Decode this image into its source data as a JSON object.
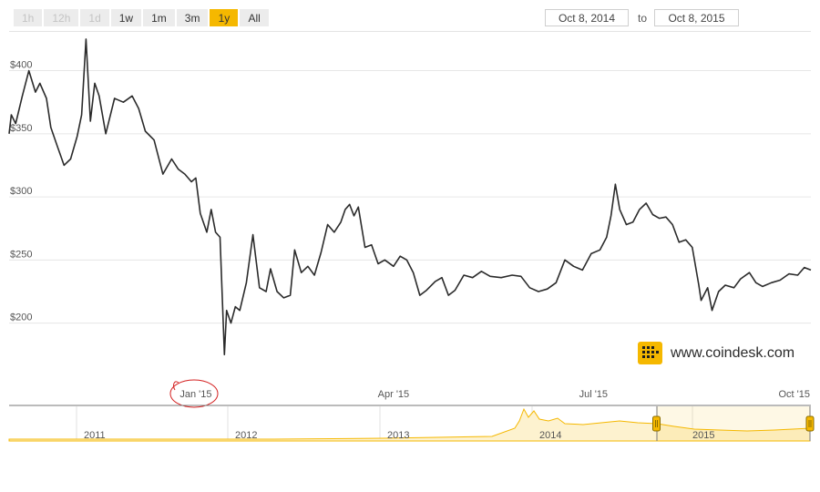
{
  "range_buttons": [
    {
      "label": "1h",
      "state": "disabled"
    },
    {
      "label": "12h",
      "state": "disabled"
    },
    {
      "label": "1d",
      "state": "disabled"
    },
    {
      "label": "1w",
      "state": "normal"
    },
    {
      "label": "1m",
      "state": "normal"
    },
    {
      "label": "3m",
      "state": "normal"
    },
    {
      "label": "1y",
      "state": "active"
    },
    {
      "label": "All",
      "state": "normal"
    }
  ],
  "date_range": {
    "from": "Oct 8, 2014",
    "to_label": "to",
    "to": "Oct 8, 2015"
  },
  "watermark": "www.coindesk.com",
  "colors": {
    "line": "#2b2b2b",
    "accent": "#f5b800",
    "grid": "#e6e6e6",
    "annotation": "#d42020"
  },
  "chart_data": {
    "type": "line",
    "ylim": [
      160,
      430
    ],
    "y_ticks": [
      {
        "value": 400,
        "label": "$400"
      },
      {
        "value": 350,
        "label": "$350"
      },
      {
        "value": 300,
        "label": "$300"
      },
      {
        "value": 250,
        "label": "$250"
      },
      {
        "value": 200,
        "label": "$200"
      }
    ],
    "x_ticks": [
      {
        "date": "2015-01-01",
        "label": "Jan '15"
      },
      {
        "date": "2015-04-01",
        "label": "Apr '15"
      },
      {
        "date": "2015-07-01",
        "label": "Jul '15"
      },
      {
        "date": "2015-10-01",
        "label": "Oct '15"
      }
    ],
    "annotation": {
      "label": "Jan '15",
      "shape": "hand-drawn red circle"
    },
    "series": [
      {
        "points": [
          [
            "2014-10-08",
            350
          ],
          [
            "2014-10-09",
            365
          ],
          [
            "2014-10-11",
            358
          ],
          [
            "2014-10-14",
            380
          ],
          [
            "2014-10-17",
            400
          ],
          [
            "2014-10-20",
            383
          ],
          [
            "2014-10-22",
            390
          ],
          [
            "2014-10-25",
            378
          ],
          [
            "2014-10-27",
            355
          ],
          [
            "2014-10-30",
            340
          ],
          [
            "2014-11-02",
            325
          ],
          [
            "2014-11-05",
            330
          ],
          [
            "2014-11-08",
            348
          ],
          [
            "2014-11-10",
            365
          ],
          [
            "2014-11-12",
            425
          ],
          [
            "2014-11-14",
            360
          ],
          [
            "2014-11-16",
            390
          ],
          [
            "2014-11-18",
            380
          ],
          [
            "2014-11-21",
            350
          ],
          [
            "2014-11-25",
            378
          ],
          [
            "2014-11-29",
            375
          ],
          [
            "2014-12-03",
            380
          ],
          [
            "2014-12-06",
            370
          ],
          [
            "2014-12-09",
            352
          ],
          [
            "2014-12-13",
            345
          ],
          [
            "2014-12-17",
            318
          ],
          [
            "2014-12-21",
            330
          ],
          [
            "2014-12-24",
            322
          ],
          [
            "2014-12-27",
            318
          ],
          [
            "2014-12-30",
            312
          ],
          [
            "2015-01-01",
            315
          ],
          [
            "2015-01-03",
            287
          ],
          [
            "2015-01-06",
            272
          ],
          [
            "2015-01-08",
            290
          ],
          [
            "2015-01-10",
            272
          ],
          [
            "2015-01-12",
            268
          ],
          [
            "2015-01-14",
            175
          ],
          [
            "2015-01-15",
            210
          ],
          [
            "2015-01-17",
            200
          ],
          [
            "2015-01-19",
            213
          ],
          [
            "2015-01-21",
            210
          ],
          [
            "2015-01-24",
            232
          ],
          [
            "2015-01-27",
            270
          ],
          [
            "2015-01-30",
            228
          ],
          [
            "2015-02-02",
            225
          ],
          [
            "2015-02-04",
            243
          ],
          [
            "2015-02-07",
            225
          ],
          [
            "2015-02-10",
            220
          ],
          [
            "2015-02-13",
            222
          ],
          [
            "2015-02-15",
            258
          ],
          [
            "2015-02-18",
            240
          ],
          [
            "2015-02-21",
            245
          ],
          [
            "2015-02-24",
            238
          ],
          [
            "2015-02-27",
            256
          ],
          [
            "2015-03-02",
            278
          ],
          [
            "2015-03-05",
            272
          ],
          [
            "2015-03-08",
            280
          ],
          [
            "2015-03-10",
            290
          ],
          [
            "2015-03-12",
            294
          ],
          [
            "2015-03-14",
            285
          ],
          [
            "2015-03-16",
            292
          ],
          [
            "2015-03-19",
            260
          ],
          [
            "2015-03-22",
            262
          ],
          [
            "2015-03-25",
            247
          ],
          [
            "2015-03-28",
            250
          ],
          [
            "2015-04-01",
            245
          ],
          [
            "2015-04-04",
            253
          ],
          [
            "2015-04-07",
            250
          ],
          [
            "2015-04-10",
            240
          ],
          [
            "2015-04-13",
            222
          ],
          [
            "2015-04-16",
            226
          ],
          [
            "2015-04-20",
            233
          ],
          [
            "2015-04-23",
            236
          ],
          [
            "2015-04-26",
            222
          ],
          [
            "2015-04-29",
            226
          ],
          [
            "2015-05-03",
            238
          ],
          [
            "2015-05-07",
            236
          ],
          [
            "2015-05-11",
            241
          ],
          [
            "2015-05-15",
            237
          ],
          [
            "2015-05-20",
            236
          ],
          [
            "2015-05-25",
            238
          ],
          [
            "2015-05-29",
            237
          ],
          [
            "2015-06-02",
            228
          ],
          [
            "2015-06-06",
            225
          ],
          [
            "2015-06-10",
            227
          ],
          [
            "2015-06-14",
            232
          ],
          [
            "2015-06-18",
            250
          ],
          [
            "2015-06-22",
            245
          ],
          [
            "2015-06-26",
            242
          ],
          [
            "2015-06-30",
            255
          ],
          [
            "2015-07-04",
            258
          ],
          [
            "2015-07-07",
            268
          ],
          [
            "2015-07-09",
            285
          ],
          [
            "2015-07-11",
            310
          ],
          [
            "2015-07-13",
            290
          ],
          [
            "2015-07-16",
            278
          ],
          [
            "2015-07-19",
            280
          ],
          [
            "2015-07-22",
            290
          ],
          [
            "2015-07-25",
            295
          ],
          [
            "2015-07-28",
            286
          ],
          [
            "2015-07-31",
            283
          ],
          [
            "2015-08-03",
            284
          ],
          [
            "2015-08-06",
            278
          ],
          [
            "2015-08-09",
            264
          ],
          [
            "2015-08-12",
            266
          ],
          [
            "2015-08-15",
            260
          ],
          [
            "2015-08-18",
            230
          ],
          [
            "2015-08-19",
            218
          ],
          [
            "2015-08-22",
            228
          ],
          [
            "2015-08-24",
            210
          ],
          [
            "2015-08-27",
            225
          ],
          [
            "2015-08-30",
            230
          ],
          [
            "2015-09-03",
            228
          ],
          [
            "2015-09-06",
            235
          ],
          [
            "2015-09-10",
            240
          ],
          [
            "2015-09-13",
            232
          ],
          [
            "2015-09-16",
            229
          ],
          [
            "2015-09-20",
            232
          ],
          [
            "2015-09-24",
            234
          ],
          [
            "2015-09-28",
            239
          ],
          [
            "2015-10-02",
            238
          ],
          [
            "2015-10-05",
            244
          ],
          [
            "2015-10-08",
            242
          ]
        ]
      }
    ],
    "navigator": {
      "year_labels": [
        "2011",
        "2012",
        "2013",
        "2014",
        "2015"
      ],
      "selection": {
        "from": "2014-10-08",
        "to": "2015-10-08"
      }
    }
  }
}
